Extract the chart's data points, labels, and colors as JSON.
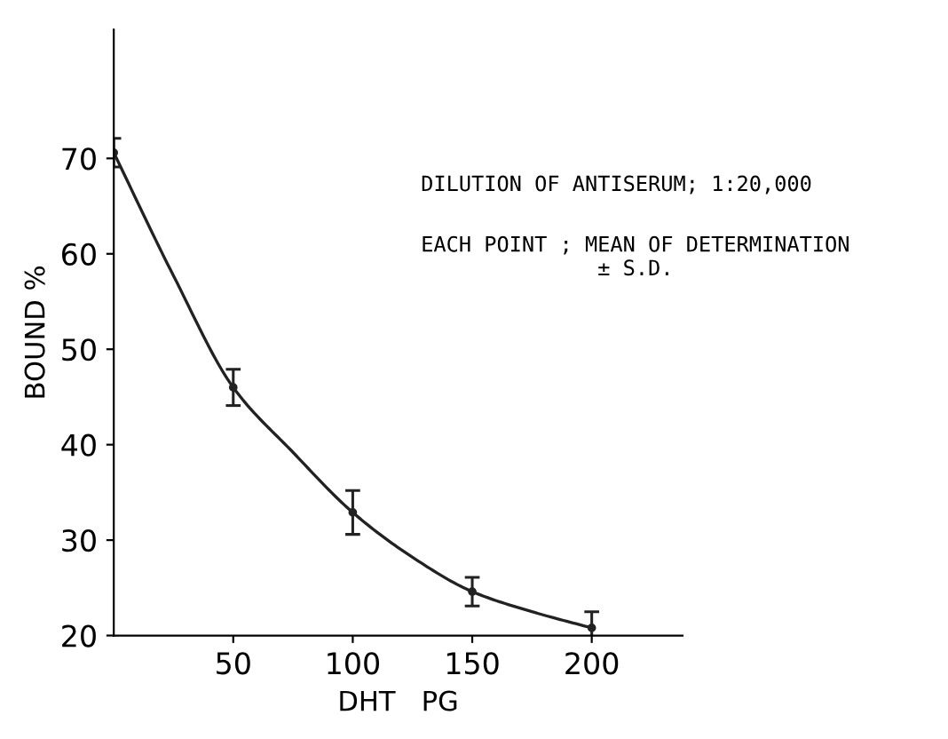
{
  "chart_data": {
    "type": "scatter",
    "xlabel": "DHT   PG",
    "ylabel": "BOUND %",
    "x": [
      0,
      50,
      100,
      150,
      200
    ],
    "series": [
      {
        "color": "#222222",
        "marker": "circle",
        "values": [
          70.6,
          46.0,
          32.9,
          24.6,
          20.8
        ],
        "errors": [
          1.5,
          1.9,
          2.3,
          1.5,
          1.7
        ]
      },
      {
        "type": "line",
        "color": "#222222",
        "x": [
          0,
          25,
          50,
          75,
          100,
          125,
          150,
          175,
          200
        ],
        "values": [
          70.6,
          57.7,
          46.0,
          39.2,
          32.9,
          28.2,
          24.6,
          22.5,
          20.8
        ]
      }
    ],
    "annotations": [
      "DILUTION OF ANTISERUM; 1:20,000",
      "EACH POINT ; MEAN OF DETERMINATION\n± S.D."
    ],
    "xlim": [
      0,
      238
    ],
    "ylim": [
      20,
      83.5
    ],
    "xticks": [
      50,
      100,
      150,
      200
    ],
    "yticks": [
      20,
      30,
      40,
      50,
      60,
      70
    ],
    "grid": false,
    "legend": false
  }
}
